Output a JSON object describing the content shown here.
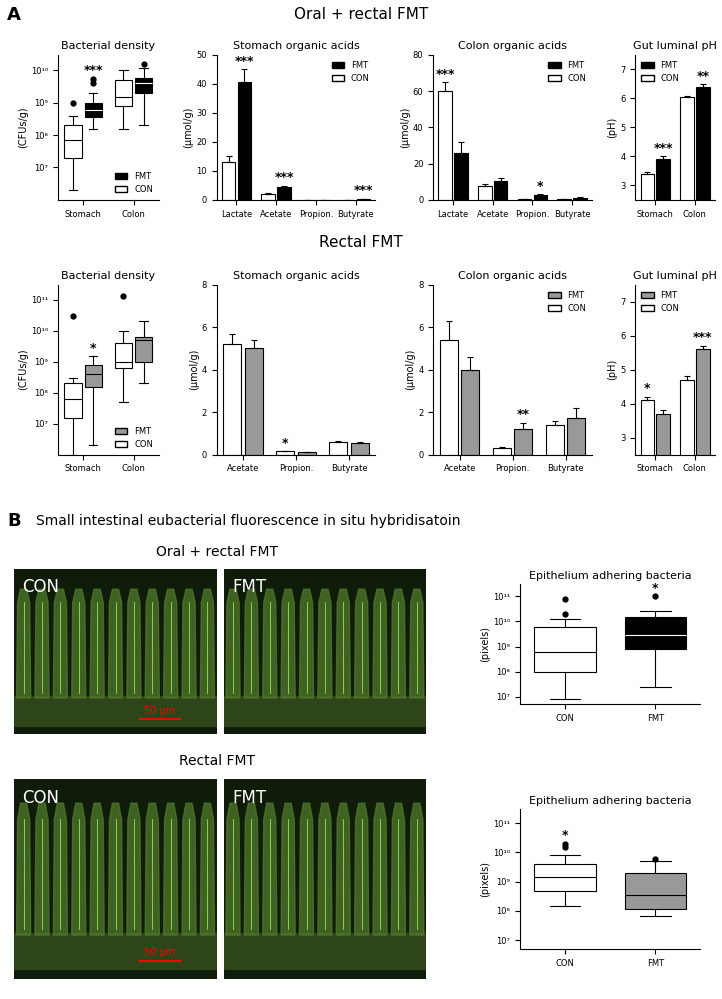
{
  "figure": {
    "panels": [
      {
        "label": "A",
        "rows": [
          "Oral + rectal FMT",
          "Rectal FMT"
        ]
      },
      {
        "label": "B",
        "title": "Small intestinal eubacterial fluorescence in situ hybridisatoin",
        "rows": [
          "Oral + rectal FMT",
          "Rectal FMT"
        ]
      }
    ]
  },
  "micrographs": [
    {
      "panels": [
        "CON",
        "FMT"
      ],
      "scale_bar": "50 µm"
    },
    {
      "panels": [
        "CON",
        "FMT"
      ],
      "scale_bar": "50 µm"
    }
  ],
  "chart_data": [
    {
      "type": "box",
      "title": "Bacterial density",
      "y_label": "(CFUs/g)",
      "categories": [
        "Stomach",
        "Colon"
      ],
      "log": "y",
      "ylim": [
        1000000.0,
        30000000000.0
      ],
      "yticks": [
        {
          "value": 10000000.0,
          "label": "10⁷"
        },
        {
          "value": 100000000.0,
          "label": "10⁸"
        },
        {
          "value": 1000000000.0,
          "label": "10⁹"
        },
        {
          "value": 10000000000.0,
          "label": "10¹⁰"
        }
      ],
      "legend": "lower right",
      "series": [
        {
          "name": "CON",
          "color": "#ffffff",
          "values": [
            {
              "whislo": 2000000.0,
              "q1": 20000000.0,
              "med": 70000000.0,
              "q3": 200000000.0,
              "whishi": 400000000.0,
              "fliers": [
                1000000000.0
              ]
            },
            {
              "whislo": 150000000.0,
              "q1": 800000000.0,
              "med": 1500000000.0,
              "q3": 5000000000.0,
              "whishi": 10000000000.0,
              "fliers": []
            }
          ]
        },
        {
          "name": "FMT",
          "color": "#000000",
          "values": [
            {
              "whislo": 150000000.0,
              "q1": 350000000.0,
              "med": 600000000.0,
              "q3": 1000000000.0,
              "whishi": 2000000000.0,
              "fliers": [
                4000000000.0,
                5500000000.0
              ]
            },
            {
              "whislo": 200000000.0,
              "q1": 2000000000.0,
              "med": 4000000000.0,
              "q3": 6000000000.0,
              "whishi": 12000000000.0,
              "fliers": [
                16000000000.0
              ]
            }
          ]
        }
      ],
      "annotations": [
        {
          "category": "Stomach",
          "series": "FMT",
          "text": "***"
        }
      ]
    },
    {
      "type": "bar",
      "title": "Stomach organic acids",
      "y_label": "(µmol/g)",
      "categories": [
        "Lactate",
        "Acetate",
        "Propion.",
        "Butyrate"
      ],
      "ylim": [
        0,
        50
      ],
      "yticks": [
        0,
        10,
        20,
        30,
        40,
        50
      ],
      "legend": "upper right",
      "series": [
        {
          "name": "CON",
          "color": "#ffffff",
          "values": [
            13,
            2,
            0,
            0
          ],
          "errors": [
            2,
            0.3,
            0,
            0
          ]
        },
        {
          "name": "FMT",
          "color": "#000000",
          "values": [
            40.5,
            4.5,
            0,
            0.3
          ],
          "errors": [
            4.5,
            0.4,
            0,
            0.05
          ]
        }
      ],
      "annotations": [
        {
          "category": "Lactate",
          "series": "FMT",
          "text": "***"
        },
        {
          "category": "Acetate",
          "series": "FMT",
          "text": "***"
        },
        {
          "category": "Butyrate",
          "series": "FMT",
          "text": "***"
        }
      ]
    },
    {
      "type": "bar",
      "title": "Colon organic acids",
      "y_label": "(µmol/g)",
      "categories": [
        "Lactate",
        "Acetate",
        "Propion.",
        "Butyrate"
      ],
      "ylim": [
        0,
        80
      ],
      "yticks": [
        0,
        20,
        40,
        60,
        80
      ],
      "legend": "upper right",
      "series": [
        {
          "name": "CON",
          "color": "#ffffff",
          "values": [
            60,
            7.5,
            0.3,
            0.5
          ],
          "errors": [
            5,
            1.5,
            0.1,
            0.2
          ]
        },
        {
          "name": "FMT",
          "color": "#000000",
          "values": [
            26,
            10.5,
            2.5,
            1
          ],
          "errors": [
            6,
            1.5,
            0.5,
            0.3
          ]
        }
      ],
      "annotations": [
        {
          "category": "Lactate",
          "series": "CON",
          "text": "***"
        },
        {
          "category": "Propion.",
          "series": "FMT",
          "text": "*"
        }
      ]
    },
    {
      "type": "bar",
      "title": "Gut luminal pH",
      "y_label": "(pH)",
      "categories": [
        "Stomach",
        "Colon"
      ],
      "ylim": [
        2.5,
        7.5
      ],
      "yticks": [
        3,
        4,
        5,
        6,
        7
      ],
      "legend": "upper left",
      "series": [
        {
          "name": "CON",
          "color": "#ffffff",
          "values": [
            3.4,
            6.05
          ],
          "errors": [
            0.05,
            0.05
          ]
        },
        {
          "name": "FMT",
          "color": "#000000",
          "values": [
            3.9,
            6.4
          ],
          "errors": [
            0.1,
            0.1
          ]
        }
      ],
      "annotations": [
        {
          "category": "Stomach",
          "series": "FMT",
          "text": "***"
        },
        {
          "category": "Colon",
          "series": "FMT",
          "text": "**"
        }
      ]
    },
    {
      "type": "box",
      "title": "Bacterial density",
      "y_label": "(CFUs/g)",
      "categories": [
        "Stomach",
        "Colon"
      ],
      "log": "y",
      "ylim": [
        1000000.0,
        300000000000.0
      ],
      "yticks": [
        {
          "value": 10000000.0,
          "label": "10⁷"
        },
        {
          "value": 100000000.0,
          "label": "10⁸"
        },
        {
          "value": 1000000000.0,
          "label": "10⁹"
        },
        {
          "value": 10000000000.0,
          "label": "10¹⁰"
        },
        {
          "value": 100000000000.0,
          "label": "10¹¹"
        }
      ],
      "legend": "lower right",
      "series": [
        {
          "name": "CON",
          "color": "#ffffff",
          "values": [
            {
              "whislo": 1000000.0,
              "q1": 15000000.0,
              "med": 60000000.0,
              "q3": 200000000.0,
              "whishi": 300000000.0,
              "fliers": [
                30000000000.0
              ]
            },
            {
              "whislo": 50000000.0,
              "q1": 600000000.0,
              "med": 1000000000.0,
              "q3": 4000000000.0,
              "whishi": 10000000000.0,
              "fliers": [
                130000000000.0
              ]
            }
          ]
        },
        {
          "name": "FMT",
          "color": "#999999",
          "values": [
            {
              "whislo": 2000000.0,
              "q1": 150000000.0,
              "med": 400000000.0,
              "q3": 800000000.0,
              "whishi": 1500000000.0,
              "fliers": []
            },
            {
              "whislo": 200000000.0,
              "q1": 1000000000.0,
              "med": 5000000000.0,
              "q3": 6000000000.0,
              "whishi": 20000000000.0,
              "fliers": []
            }
          ]
        }
      ],
      "annotations": [
        {
          "category": "Stomach",
          "series": "FMT",
          "text": "*"
        }
      ]
    },
    {
      "type": "bar",
      "title": "Stomach organic acids",
      "y_label": "(µmol/g)",
      "categories": [
        "Acetate",
        "Propion.",
        "Butyrate"
      ],
      "ylim": [
        0,
        8
      ],
      "yticks": [
        0,
        2,
        4,
        6,
        8
      ],
      "series": [
        {
          "name": "CON",
          "color": "#ffffff",
          "values": [
            5.2,
            0.15,
            0.6
          ],
          "errors": [
            0.5,
            0.02,
            0.03
          ]
        },
        {
          "name": "FMT",
          "color": "#999999",
          "values": [
            5.0,
            0.1,
            0.55
          ],
          "errors": [
            0.4,
            0.02,
            0.03
          ]
        }
      ],
      "annotations": [
        {
          "category": "Propion.",
          "series": "CON",
          "text": "*"
        }
      ]
    },
    {
      "type": "bar",
      "title": "Colon organic acids",
      "y_label": "(µmol/g)",
      "categories": [
        "Acetate",
        "Propion.",
        "Butyrate"
      ],
      "ylim": [
        0,
        8
      ],
      "yticks": [
        0,
        2,
        4,
        6,
        8
      ],
      "legend": "upper right",
      "series": [
        {
          "name": "CON",
          "color": "#ffffff",
          "values": [
            5.4,
            0.3,
            1.4
          ],
          "errors": [
            0.9,
            0.05,
            0.2
          ]
        },
        {
          "name": "FMT",
          "color": "#999999",
          "values": [
            4.0,
            1.2,
            1.7
          ],
          "errors": [
            0.6,
            0.3,
            0.5
          ]
        }
      ],
      "annotations": [
        {
          "category": "Propion.",
          "series": "FMT",
          "text": "**"
        }
      ]
    },
    {
      "type": "bar",
      "title": "Gut luminal pH",
      "y_label": "(pH)",
      "categories": [
        "Stomach",
        "Colon"
      ],
      "ylim": [
        2.5,
        7.5
      ],
      "yticks": [
        3,
        4,
        5,
        6,
        7
      ],
      "legend": "upper left",
      "series": [
        {
          "name": "CON",
          "color": "#ffffff",
          "values": [
            4.1,
            4.7
          ],
          "errors": [
            0.1,
            0.1
          ]
        },
        {
          "name": "FMT",
          "color": "#999999",
          "values": [
            3.7,
            5.6
          ],
          "errors": [
            0.1,
            0.1
          ]
        }
      ],
      "annotations": [
        {
          "category": "Stomach",
          "series": "CON",
          "text": "*"
        },
        {
          "category": "Colon",
          "series": "FMT",
          "text": "***"
        }
      ]
    },
    {
      "type": "box",
      "title": "Epithelium adhering bacteria",
      "y_label": "(pixels)",
      "categories": [
        "CON",
        "FMT"
      ],
      "log": "y",
      "ylim": [
        5000000.0,
        300000000000.0
      ],
      "yticks": [
        {
          "value": 10000000.0,
          "label": "10⁷"
        },
        {
          "value": 100000000.0,
          "label": "10⁸"
        },
        {
          "value": 1000000000.0,
          "label": "10⁹"
        },
        {
          "value": 10000000000.0,
          "label": "10¹⁰"
        },
        {
          "value": 100000000000.0,
          "label": "10¹¹"
        }
      ],
      "colors": [
        "#ffffff",
        "#000000"
      ],
      "values": [
        {
          "whislo": 8000000.0,
          "q1": 100000000.0,
          "med": 600000000.0,
          "q3": 6000000000.0,
          "whishi": 12000000000.0,
          "fliers": [
            20000000000.0,
            80000000000.0
          ]
        },
        {
          "whislo": 25000000.0,
          "q1": 800000000.0,
          "med": 3000000000.0,
          "q3": 15000000000.0,
          "whishi": 25000000000.0,
          "fliers": [
            100000000000.0
          ]
        }
      ],
      "annotations": [
        {
          "category": "FMT",
          "text": "*"
        }
      ]
    },
    {
      "type": "box",
      "title": "Epithelium adhering bacteria",
      "y_label": "(pixels)",
      "categories": [
        "CON",
        "FMT"
      ],
      "log": "y",
      "ylim": [
        5000000.0,
        300000000000.0
      ],
      "yticks": [
        {
          "value": 10000000.0,
          "label": "10⁷"
        },
        {
          "value": 100000000.0,
          "label": "10⁸"
        },
        {
          "value": 1000000000.0,
          "label": "10⁹"
        },
        {
          "value": 10000000000.0,
          "label": "10¹⁰"
        },
        {
          "value": 100000000000.0,
          "label": "10¹¹"
        }
      ],
      "colors": [
        "#ffffff",
        "#999999"
      ],
      "values": [
        {
          "whislo": 150000000.0,
          "q1": 500000000.0,
          "med": 1500000000.0,
          "q3": 4000000000.0,
          "whishi": 8000000000.0,
          "fliers": [
            15000000000.0,
            20000000000.0
          ]
        },
        {
          "whislo": 70000000.0,
          "q1": 120000000.0,
          "med": 350000000.0,
          "q3": 2000000000.0,
          "whishi": 5000000000.0,
          "fliers": [
            6000000000.0
          ]
        }
      ],
      "annotations": [
        {
          "category": "CON",
          "text": "*"
        }
      ]
    }
  ]
}
